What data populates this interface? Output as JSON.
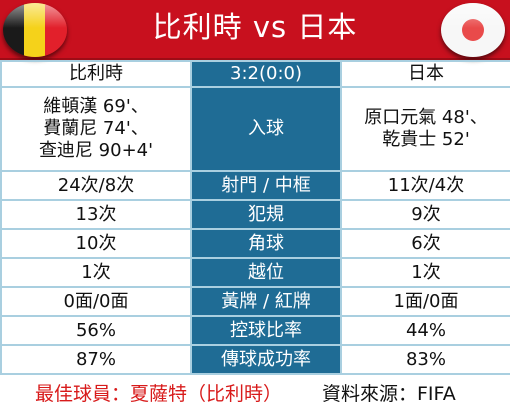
{
  "title": "比利時 vs 日本",
  "flags": {
    "left": "belgium-flag",
    "right": "japan-flag"
  },
  "teams": {
    "left": "比利時",
    "right": "日本"
  },
  "score": "3:2(0:0)",
  "goals": {
    "label": "入球",
    "left": [
      "維頓漢 69'、",
      "費蘭尼 74'、",
      "查迪尼 90+4'"
    ],
    "right": [
      "原口元氣 48'、",
      "乾貴士 52'"
    ]
  },
  "rows": [
    {
      "label": "射門 / 中框",
      "left": "24次/8次",
      "right": "11次/4次"
    },
    {
      "label": "犯規",
      "left": "13次",
      "right": "9次"
    },
    {
      "label": "角球",
      "left": "10次",
      "right": "6次"
    },
    {
      "label": "越位",
      "left": "1次",
      "right": "1次"
    },
    {
      "label": "黃牌 / 紅牌",
      "left": "0面/0面",
      "right": "1面/0面"
    },
    {
      "label": "控球比率",
      "left": "56%",
      "right": "44%"
    },
    {
      "label": "傳球成功率",
      "left": "87%",
      "right": "83%"
    }
  ],
  "footer": {
    "mvp": "最佳球員：夏薩特（比利時）",
    "source": "資料來源：FIFA"
  },
  "colors": {
    "header": "#c8101e",
    "middle": "#1f6c95",
    "grid": "#a9cfe0",
    "mvp_text": "#d81b1b"
  }
}
